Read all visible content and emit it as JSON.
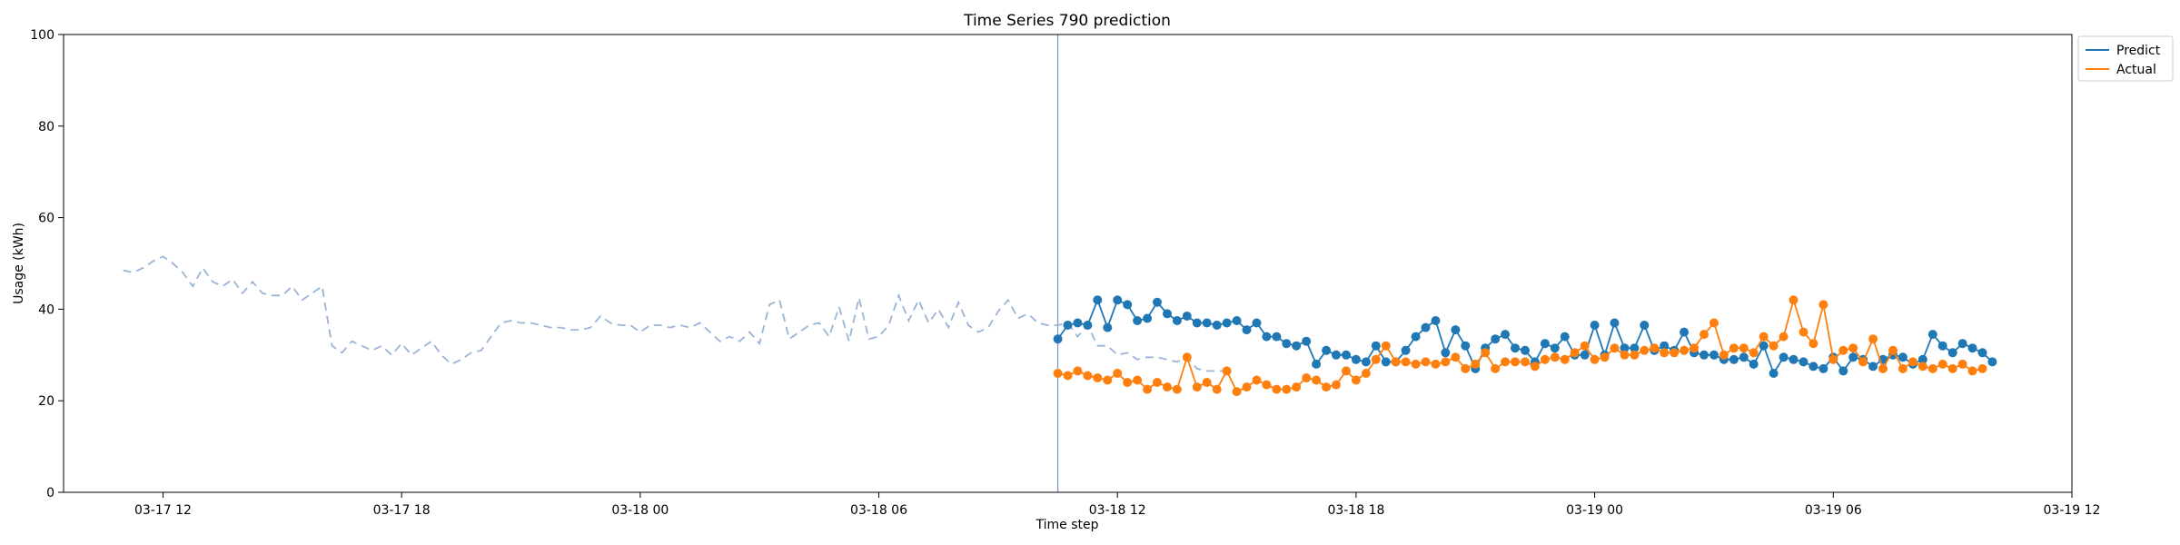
{
  "chart_data": {
    "type": "line",
    "title": "Time Series 790 prediction",
    "xlabel": "Time step",
    "ylabel": "Usage (kWh)",
    "ylim": [
      0,
      100
    ],
    "yticks": [
      0,
      20,
      40,
      60,
      80,
      100
    ],
    "xticks": [
      {
        "at": "2000-03-17T12:00",
        "label": "03-17 12"
      },
      {
        "at": "2000-03-17T18:00",
        "label": "03-17 18"
      },
      {
        "at": "2000-03-18T00:00",
        "label": "03-18 00"
      },
      {
        "at": "2000-03-18T06:00",
        "label": "03-18 06"
      },
      {
        "at": "2000-03-18T12:00",
        "label": "03-18 12"
      },
      {
        "at": "2000-03-18T18:00",
        "label": "03-18 18"
      },
      {
        "at": "2000-03-19T00:00",
        "label": "03-19 00"
      },
      {
        "at": "2000-03-19T06:00",
        "label": "03-19 06"
      },
      {
        "at": "2000-03-19T12:00",
        "label": "03-19 12"
      }
    ],
    "xlim": [
      "2000-03-17T09:30",
      "2000-03-19T12:00"
    ],
    "legend_position": "outside top-right",
    "split_time": "2000-03-18T10:30",
    "history": {
      "start": "2000-03-17T11:00",
      "step_minutes": 15,
      "color": "#9ab4d8",
      "style": "dashed",
      "values": [
        48.5,
        48.0,
        49.0,
        50.5,
        51.5,
        50.0,
        48.0,
        45.0,
        49.0,
        46.0,
        45.0,
        46.5,
        43.5,
        46.0,
        43.5,
        43.0,
        43.0,
        45.0,
        42.0,
        43.5,
        45.0,
        32.0,
        30.5,
        33.0,
        32.0,
        31.0,
        32.0,
        30.0,
        32.5,
        30.0,
        31.5,
        33.0,
        30.0,
        28.0,
        29.0,
        30.5,
        31.0,
        34.0,
        37.0,
        37.5,
        37.0,
        37.0,
        36.5,
        36.0,
        36.0,
        35.5,
        35.5,
        36.0,
        38.5,
        37.0,
        36.5,
        36.5,
        35.0,
        36.5,
        36.5,
        36.0,
        36.5,
        36.0,
        37.0,
        35.0,
        33.0,
        34.0,
        33.0,
        35.0,
        32.5,
        41.0,
        42.0,
        33.5,
        35.0,
        36.5,
        37.0,
        34.0,
        40.5,
        33.0,
        42.5,
        33.5,
        34.0,
        36.5,
        43.0,
        37.5,
        42.0,
        37.0,
        40.0,
        36.0,
        41.5,
        36.5,
        35.0,
        36.0,
        39.5,
        42.0,
        38.0,
        39.0,
        37.0,
        36.5,
        36.5,
        37.0,
        34.0,
        36.5,
        32.0,
        32.0,
        30.0,
        30.5,
        29.0,
        29.5,
        29.5,
        29.0,
        28.5,
        29.5,
        27.0,
        26.5,
        26.5,
        26.5
      ]
    },
    "series": [
      {
        "name": "Predict",
        "color": "#1f77b4",
        "start": "2000-03-18T10:30",
        "step_minutes": 15,
        "values": [
          33.5,
          36.5,
          37.0,
          36.5,
          42.0,
          36.0,
          42.0,
          41.0,
          37.5,
          38.0,
          41.5,
          39.0,
          37.5,
          38.5,
          37.0,
          37.0,
          36.5,
          37.0,
          37.5,
          35.5,
          37.0,
          34.0,
          34.0,
          32.5,
          32.0,
          33.0,
          28.0,
          31.0,
          30.0,
          30.0,
          29.0,
          28.5,
          32.0,
          28.5,
          28.5,
          31.0,
          34.0,
          36.0,
          37.5,
          30.5,
          35.5,
          32.0,
          27.0,
          31.5,
          33.5,
          34.5,
          31.5,
          31.0,
          28.5,
          32.5,
          31.5,
          34.0,
          30.0,
          30.0,
          36.5,
          30.0,
          37.0,
          31.5,
          31.5,
          36.5,
          31.0,
          32.0,
          31.0,
          35.0,
          30.5,
          30.0,
          30.0,
          29.0,
          29.0,
          29.5,
          28.0,
          32.0,
          26.0,
          29.5,
          29.0,
          28.5,
          27.5,
          27.0,
          29.5,
          26.5,
          29.5,
          29.0,
          27.5,
          29.0,
          30.0,
          29.5,
          28.0,
          29.0,
          34.5,
          32.0,
          30.5,
          32.5,
          31.5,
          30.5,
          28.5
        ]
      },
      {
        "name": "Actual",
        "color": "#ff7f0e",
        "start": "2000-03-18T10:30",
        "step_minutes": 15,
        "values": [
          26.0,
          25.5,
          26.5,
          25.5,
          25.0,
          24.5,
          26.0,
          24.0,
          24.5,
          22.5,
          24.0,
          23.0,
          22.5,
          29.5,
          23.0,
          24.0,
          22.5,
          26.5,
          22.0,
          23.0,
          24.5,
          23.5,
          22.5,
          22.5,
          23.0,
          25.0,
          24.5,
          23.0,
          23.5,
          26.5,
          24.5,
          26.0,
          29.0,
          32.0,
          28.5,
          28.5,
          28.0,
          28.5,
          28.0,
          28.5,
          29.5,
          27.0,
          28.0,
          30.5,
          27.0,
          28.5,
          28.5,
          28.5,
          27.5,
          29.0,
          29.5,
          29.0,
          30.5,
          32.0,
          29.0,
          29.5,
          31.5,
          30.0,
          30.0,
          31.0,
          31.5,
          30.5,
          30.5,
          31.0,
          31.5,
          34.5,
          37.0,
          30.0,
          31.5,
          31.5,
          30.5,
          34.0,
          32.0,
          34.0,
          42.0,
          35.0,
          32.5,
          41.0,
          29.0,
          31.0,
          31.5,
          28.5,
          33.5,
          27.0,
          31.0,
          27.0,
          28.5,
          27.5,
          27.0,
          28.0,
          27.0,
          28.0,
          26.5,
          27.0
        ]
      }
    ]
  }
}
